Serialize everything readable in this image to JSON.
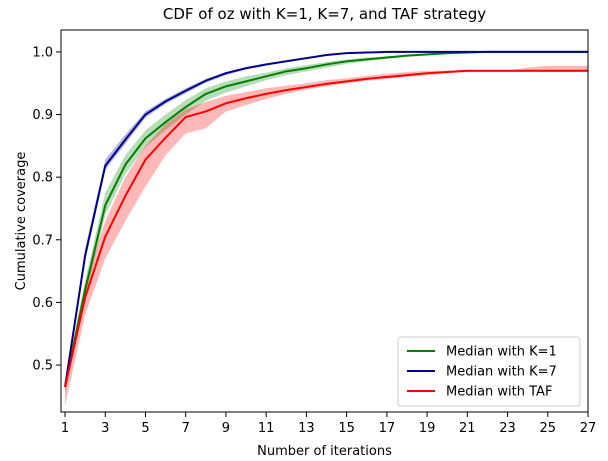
{
  "chart_data": {
    "type": "line",
    "title": "CDF of oz with K=1, K=7, and TAF strategy",
    "xlabel": "Number of iterations",
    "ylabel": "Cumulative coverage",
    "xlim": [
      0.8,
      27
    ],
    "ylim": [
      0.425,
      1.035
    ],
    "xticks": [
      1,
      3,
      5,
      7,
      9,
      11,
      13,
      15,
      17,
      19,
      21,
      23,
      25,
      27
    ],
    "yticks": [
      0.5,
      0.6,
      0.7,
      0.8,
      0.9,
      1.0
    ],
    "ytick_labels": [
      "0.5",
      "0.6",
      "0.7",
      "0.8",
      "0.9",
      "1.0"
    ],
    "grid": false,
    "legend_position": "bottom-right",
    "x": [
      1,
      2,
      3,
      4,
      5,
      6,
      7,
      8,
      9,
      10,
      11,
      12,
      13,
      14,
      15,
      16,
      17,
      18,
      19,
      20,
      21,
      22,
      23,
      24,
      25,
      26,
      27
    ],
    "series": [
      {
        "name": "Median with K=1",
        "color": "#008000",
        "band_color": "#008000",
        "band_opacity": 0.28,
        "median": [
          0.465,
          0.62,
          0.755,
          0.82,
          0.862,
          0.888,
          0.912,
          0.933,
          0.945,
          0.953,
          0.961,
          0.969,
          0.974,
          0.98,
          0.985,
          0.988,
          0.991,
          0.994,
          0.996,
          0.998,
          0.999,
          1.0,
          1.0,
          1.0,
          1.0,
          1.0,
          1.0
        ],
        "low": [
          0.455,
          0.605,
          0.74,
          0.805,
          0.848,
          0.875,
          0.9,
          0.922,
          0.935,
          0.945,
          0.955,
          0.963,
          0.969,
          0.975,
          0.981,
          0.985,
          0.989,
          0.992,
          0.994,
          0.996,
          0.998,
          0.999,
          1.0,
          1.0,
          1.0,
          1.0,
          1.0
        ],
        "high": [
          0.475,
          0.635,
          0.775,
          0.835,
          0.875,
          0.9,
          0.923,
          0.942,
          0.953,
          0.961,
          0.967,
          0.974,
          0.979,
          0.984,
          0.988,
          0.991,
          0.993,
          0.995,
          0.997,
          0.999,
          1.0,
          1.0,
          1.0,
          1.0,
          1.0,
          1.0,
          1.0
        ]
      },
      {
        "name": "Median with K=7",
        "color": "#00008b",
        "band_color": "#00008b",
        "band_opacity": 0.3,
        "median": [
          0.465,
          0.675,
          0.818,
          0.86,
          0.9,
          0.921,
          0.938,
          0.954,
          0.966,
          0.974,
          0.98,
          0.985,
          0.99,
          0.995,
          0.998,
          0.999,
          1.0,
          1.0,
          1.0,
          1.0,
          1.0,
          1.0,
          1.0,
          1.0,
          1.0,
          1.0,
          1.0
        ],
        "low": [
          0.458,
          0.665,
          0.812,
          0.853,
          0.895,
          0.917,
          0.934,
          0.951,
          0.963,
          0.972,
          0.978,
          0.984,
          0.989,
          0.994,
          0.997,
          0.999,
          1.0,
          1.0,
          1.0,
          1.0,
          1.0,
          1.0,
          1.0,
          1.0,
          1.0,
          1.0,
          1.0
        ],
        "high": [
          0.47,
          0.685,
          0.828,
          0.868,
          0.905,
          0.925,
          0.942,
          0.957,
          0.968,
          0.976,
          0.982,
          0.987,
          0.992,
          0.996,
          0.999,
          1.0,
          1.0,
          1.0,
          1.0,
          1.0,
          1.0,
          1.0,
          1.0,
          1.0,
          1.0,
          1.0,
          1.0
        ]
      },
      {
        "name": "Median with TAF",
        "color": "#ff0000",
        "band_color": "#ff0000",
        "band_opacity": 0.28,
        "median": [
          0.465,
          0.608,
          0.705,
          0.77,
          0.828,
          0.863,
          0.896,
          0.905,
          0.918,
          0.926,
          0.933,
          0.939,
          0.944,
          0.949,
          0.953,
          0.957,
          0.96,
          0.963,
          0.966,
          0.968,
          0.97,
          0.97,
          0.97,
          0.97,
          0.97,
          0.97,
          0.97
        ],
        "low": [
          0.435,
          0.58,
          0.67,
          0.73,
          0.785,
          0.835,
          0.87,
          0.878,
          0.905,
          0.915,
          0.925,
          0.933,
          0.94,
          0.945,
          0.95,
          0.954,
          0.957,
          0.96,
          0.963,
          0.966,
          0.968,
          0.968,
          0.968,
          0.968,
          0.968,
          0.968,
          0.968
        ],
        "high": [
          0.475,
          0.63,
          0.73,
          0.8,
          0.85,
          0.885,
          0.908,
          0.92,
          0.93,
          0.936,
          0.942,
          0.946,
          0.95,
          0.955,
          0.958,
          0.962,
          0.965,
          0.968,
          0.97,
          0.97,
          0.97,
          0.97,
          0.97,
          0.975,
          0.978,
          0.978,
          0.978
        ]
      }
    ]
  }
}
